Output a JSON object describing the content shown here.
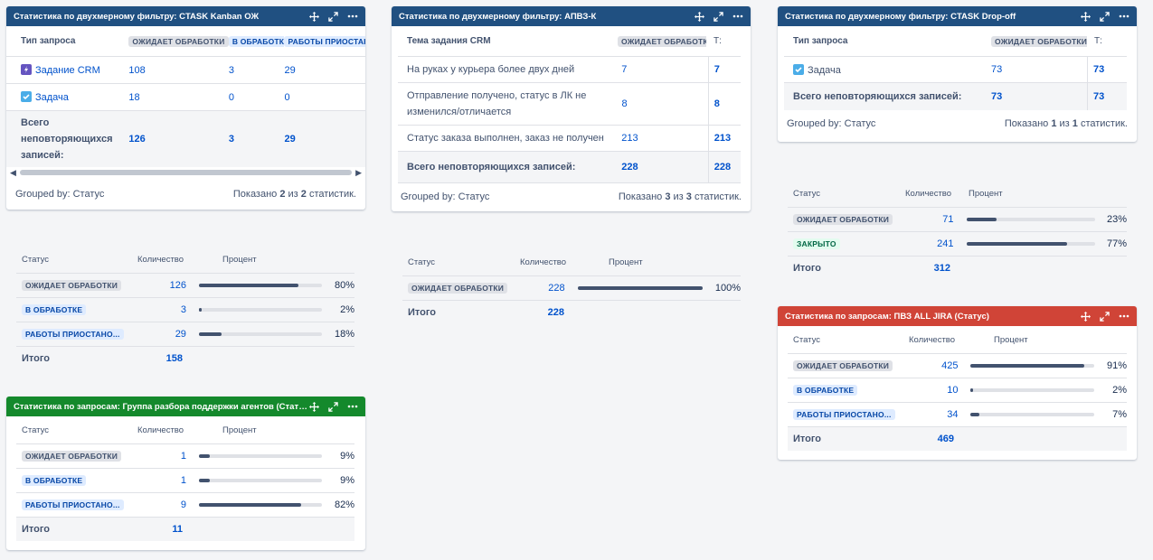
{
  "header_icons": {
    "move": "move-icon",
    "expand": "expand-icon",
    "more": "more-icon"
  },
  "g1": {
    "title": "Статистика по двухмерному фильтру: CTASK Kanban ОЖ",
    "col0": "Тип запроса",
    "cols": [
      "ОЖИДАЕТ ОБРАБОТКИ",
      "В ОБРАБОТКЕ",
      "РАБОТЫ ПРИОСТАН"
    ],
    "rows": [
      {
        "label": "Задание CRM",
        "v": [
          "108",
          "3",
          "29"
        ]
      },
      {
        "label": "Задача",
        "v": [
          "18",
          "0",
          "0"
        ]
      }
    ],
    "total_label": "Всего неповторяющихся записей:",
    "total": [
      "126",
      "3",
      "29"
    ],
    "grouped": "Grouped by: Статус",
    "shown_prefix": "Показано ",
    "shown_a": "2",
    "shown_mid": " из ",
    "shown_b": "2",
    "shown_suffix": " статистик."
  },
  "g2": {
    "title": "Статистика по двухмерному фильтру: АПВЗ-К",
    "col0": "Тема задания CRM",
    "col1": "ОЖИДАЕТ ОБРАБОТКИ",
    "col2": "Т:",
    "rows": [
      {
        "label": "На руках у курьера более двух дней",
        "v": "7",
        "t": "7"
      },
      {
        "label": "Отправление получено, статус в ЛК не изменился/отличается",
        "v": "8",
        "t": "8"
      },
      {
        "label": "Статус заказа выполнен, заказ не получен",
        "v": "213",
        "t": "213"
      }
    ],
    "total_label": "Всего неповторяющихся записей:",
    "total_v": "228",
    "total_t": "228",
    "grouped": "Grouped by: Статус",
    "shown_prefix": "Показано ",
    "shown_a": "3",
    "shown_mid": " из ",
    "shown_b": "3",
    "shown_suffix": " статистик."
  },
  "g3": {
    "title": "Статистика по двухмерному фильтру: CTASK Drop-off",
    "col0": "Тип запроса",
    "col1": "ОЖИДАЕТ ОБРАБОТКИ",
    "col2": "Т:",
    "rows": [
      {
        "label": "Задача",
        "v": "73",
        "t": "73"
      }
    ],
    "total_label": "Всего неповторяющихся записей:",
    "total_v": "73",
    "total_t": "73",
    "grouped": "Grouped by: Статус",
    "shown_prefix": "Показано ",
    "shown_a": "1",
    "shown_mid": " из ",
    "shown_b": "1",
    "shown_suffix": " статистик."
  },
  "pct_headers": {
    "status": "Статус",
    "count": "Количество",
    "percent": "Процент"
  },
  "p1": {
    "rows": [
      {
        "status": "ОЖИДАЕТ ОБРАБОТКИ",
        "style": "gray",
        "count": "126",
        "pct": "80%",
        "frac": 0.8
      },
      {
        "status": "В ОБРАБОТКЕ",
        "style": "blue",
        "count": "3",
        "pct": "2%",
        "frac": 0.02
      },
      {
        "status": "РАБОТЫ ПРИОСТАНО...",
        "style": "blue",
        "count": "29",
        "pct": "18%",
        "frac": 0.18
      }
    ],
    "total_label": "Итого",
    "total": "158"
  },
  "p2": {
    "rows": [
      {
        "status": "ОЖИДАЕТ ОБРАБОТКИ",
        "style": "gray",
        "count": "228",
        "pct": "100%",
        "frac": 1.0
      }
    ],
    "total_label": "Итого",
    "total": "228"
  },
  "p3": {
    "rows": [
      {
        "status": "ОЖИДАЕТ ОБРАБОТКИ",
        "style": "gray",
        "count": "71",
        "pct": "23%",
        "frac": 0.23
      },
      {
        "status": "ЗАКРЫТО",
        "style": "green",
        "count": "241",
        "pct": "77%",
        "frac": 0.77
      }
    ],
    "total_label": "Итого",
    "total": "312"
  },
  "p4": {
    "title": "Статистика по запросам: Группа разбора поддержки агентов (Статус)",
    "rows": [
      {
        "status": "ОЖИДАЕТ ОБРАБОТКИ",
        "style": "gray",
        "count": "1",
        "pct": "9%",
        "frac": 0.09
      },
      {
        "status": "В ОБРАБОТКЕ",
        "style": "blue",
        "count": "1",
        "pct": "9%",
        "frac": 0.09
      },
      {
        "status": "РАБОТЫ ПРИОСТАНО...",
        "style": "blue",
        "count": "9",
        "pct": "82%",
        "frac": 0.82
      }
    ],
    "total_label": "Итого",
    "total": "11"
  },
  "p5": {
    "title": "Статистика по запросам: ПВЗ ALL JIRA (Статус)",
    "rows": [
      {
        "status": "ОЖИДАЕТ ОБРАБОТКИ",
        "style": "gray",
        "count": "425",
        "pct": "91%",
        "frac": 0.91
      },
      {
        "status": "В ОБРАБОТКЕ",
        "style": "blue",
        "count": "10",
        "pct": "2%",
        "frac": 0.02
      },
      {
        "status": "РАБОТЫ ПРИОСТАНО...",
        "style": "blue",
        "count": "34",
        "pct": "7%",
        "frac": 0.07
      }
    ],
    "total_label": "Итого",
    "total": "469"
  }
}
